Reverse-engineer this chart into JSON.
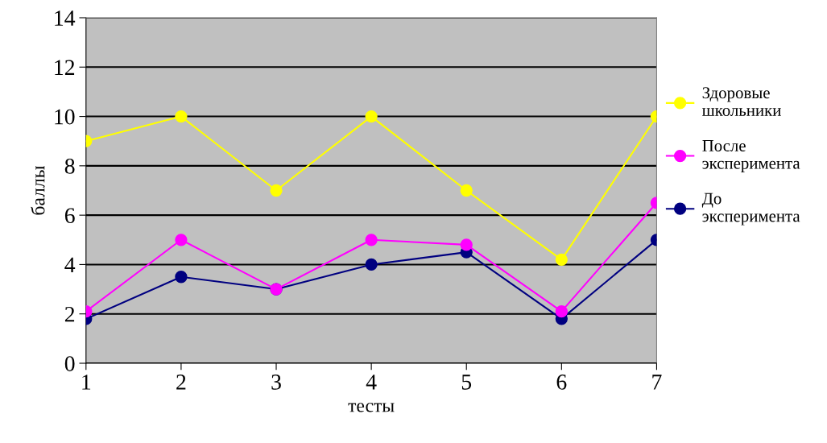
{
  "chart_data": {
    "type": "line",
    "xlabel": "тесты",
    "ylabel": "баллы",
    "x": [
      1,
      2,
      3,
      4,
      5,
      6,
      7
    ],
    "xlim": [
      1,
      7
    ],
    "xticks": [
      1,
      2,
      3,
      4,
      5,
      6,
      7
    ],
    "ylim": [
      0,
      14
    ],
    "yticks": [
      0,
      2,
      4,
      6,
      8,
      10,
      12,
      14
    ],
    "grid": "y",
    "legend": "right",
    "marker": "circle",
    "line_style": "solid",
    "series": [
      {
        "name": "Здоровые школьники",
        "color": "#ffff00",
        "values": [
          9,
          10,
          7,
          10,
          7,
          4.2,
          10
        ]
      },
      {
        "name": "После эксперимента",
        "color": "#ff00ff",
        "values": [
          2.1,
          5,
          3,
          5,
          4.8,
          2.1,
          6.5
        ]
      },
      {
        "name": "До эксперимента",
        "color": "#000080",
        "values": [
          1.8,
          3.5,
          3,
          4,
          4.5,
          1.8,
          5
        ]
      }
    ]
  }
}
